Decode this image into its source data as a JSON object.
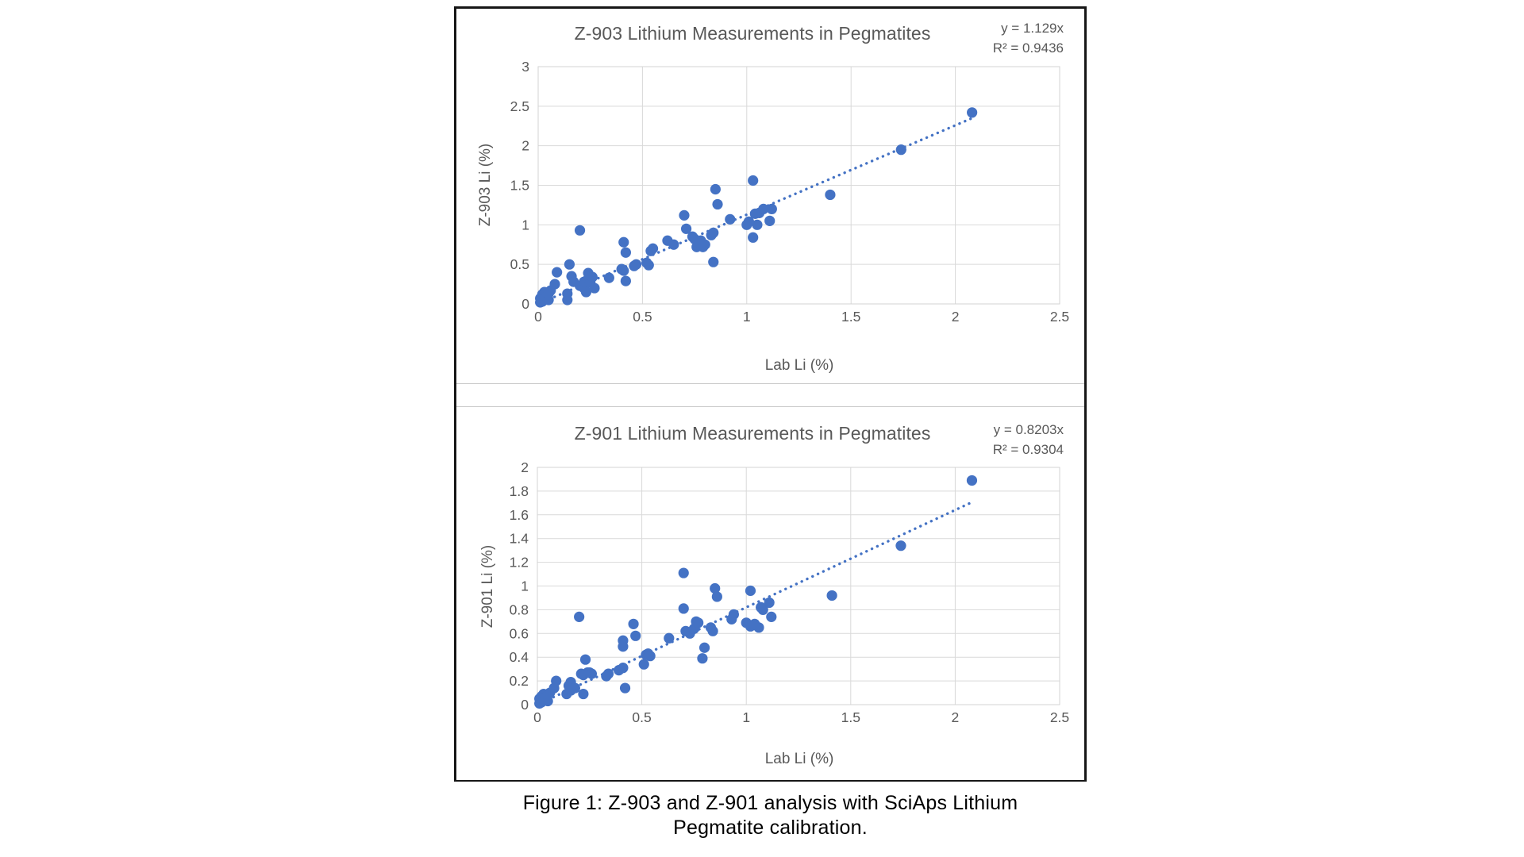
{
  "figure": {
    "caption": {
      "line1": "Figure 1: Z-903 and Z-901 analysis with SciAps Lithium",
      "line2": "Pegmatite calibration."
    }
  },
  "colors": {
    "marker": "#4472C4",
    "trendline": "#4472C4",
    "grid": "#D9D9D9",
    "plot_border": "#D3D3D3",
    "axis_text": "#595959",
    "figure_border": "#161616"
  },
  "chart_data": [
    {
      "type": "scatter",
      "title": "Z-903 Lithium Measurements in Pegmatites",
      "equation": "y = 1.129x",
      "r_squared": "R² = 0.9436",
      "xlabel": "Lab Li (%)",
      "ylabel": "Z-903 Li (%)",
      "xlim": [
        0,
        2.5
      ],
      "ylim": [
        0,
        3
      ],
      "xticks": [
        0,
        0.5,
        1,
        1.5,
        2,
        2.5
      ],
      "yticks": [
        0,
        0.5,
        1,
        1.5,
        2,
        2.5,
        3
      ],
      "grid": true,
      "legend": "none",
      "trendline": {
        "style": "dotted",
        "slope": 1.129,
        "x_start": 0,
        "x_end": 2.09
      },
      "points": [
        [
          0.01,
          0.02
        ],
        [
          0.01,
          0.07
        ],
        [
          0.02,
          0.03
        ],
        [
          0.02,
          0.12
        ],
        [
          0.03,
          0.05
        ],
        [
          0.03,
          0.15
        ],
        [
          0.04,
          0.09
        ],
        [
          0.05,
          0.05
        ],
        [
          0.05,
          0.13
        ],
        [
          0.06,
          0.17
        ],
        [
          0.08,
          0.25
        ],
        [
          0.09,
          0.4
        ],
        [
          0.14,
          0.05
        ],
        [
          0.14,
          0.13
        ],
        [
          0.15,
          0.5
        ],
        [
          0.16,
          0.35
        ],
        [
          0.17,
          0.28
        ],
        [
          0.2,
          0.93
        ],
        [
          0.2,
          0.23
        ],
        [
          0.22,
          0.2
        ],
        [
          0.22,
          0.28
        ],
        [
          0.23,
          0.15
        ],
        [
          0.24,
          0.32
        ],
        [
          0.24,
          0.39
        ],
        [
          0.25,
          0.27
        ],
        [
          0.26,
          0.34
        ],
        [
          0.27,
          0.2
        ],
        [
          0.34,
          0.33
        ],
        [
          0.4,
          0.44
        ],
        [
          0.41,
          0.42
        ],
        [
          0.41,
          0.78
        ],
        [
          0.42,
          0.65
        ],
        [
          0.42,
          0.29
        ],
        [
          0.46,
          0.48
        ],
        [
          0.47,
          0.5
        ],
        [
          0.52,
          0.52
        ],
        [
          0.53,
          0.49
        ],
        [
          0.54,
          0.67
        ],
        [
          0.55,
          0.7
        ],
        [
          0.62,
          0.8
        ],
        [
          0.65,
          0.75
        ],
        [
          0.7,
          1.12
        ],
        [
          0.71,
          0.95
        ],
        [
          0.74,
          0.85
        ],
        [
          0.75,
          0.82
        ],
        [
          0.76,
          0.72
        ],
        [
          0.77,
          0.77
        ],
        [
          0.78,
          0.8
        ],
        [
          0.79,
          0.72
        ],
        [
          0.8,
          0.75
        ],
        [
          0.83,
          0.87
        ],
        [
          0.84,
          0.9
        ],
        [
          0.84,
          0.53
        ],
        [
          0.85,
          1.45
        ],
        [
          0.86,
          1.26
        ],
        [
          0.92,
          1.07
        ],
        [
          1.0,
          1.0
        ],
        [
          1.01,
          1.04
        ],
        [
          1.03,
          1.56
        ],
        [
          1.03,
          0.84
        ],
        [
          1.04,
          1.14
        ],
        [
          1.05,
          1.0
        ],
        [
          1.06,
          1.15
        ],
        [
          1.08,
          1.2
        ],
        [
          1.11,
          1.05
        ],
        [
          1.12,
          1.2
        ],
        [
          1.4,
          1.38
        ],
        [
          1.74,
          1.95
        ],
        [
          2.08,
          2.42
        ]
      ]
    },
    {
      "type": "scatter",
      "title": "Z-901 Lithium Measurements in Pegmatites",
      "equation": "y = 0.8203x",
      "r_squared": "R² = 0.9304",
      "xlabel": "Lab Li (%)",
      "ylabel": "Z-901 Li (%)",
      "xlim": [
        0,
        2.5
      ],
      "ylim": [
        0,
        2
      ],
      "xticks": [
        0,
        0.5,
        1,
        1.5,
        2,
        2.5
      ],
      "yticks": [
        0,
        0.2,
        0.4,
        0.6,
        0.8,
        1,
        1.2,
        1.4,
        1.6,
        1.8,
        2
      ],
      "grid": true,
      "legend": "none",
      "trendline": {
        "style": "dotted",
        "slope": 0.8203,
        "x_start": 0,
        "x_end": 2.07
      },
      "points": [
        [
          0.01,
          0.01
        ],
        [
          0.01,
          0.05
        ],
        [
          0.02,
          0.02
        ],
        [
          0.02,
          0.07
        ],
        [
          0.03,
          0.04
        ],
        [
          0.03,
          0.09
        ],
        [
          0.04,
          0.06
        ],
        [
          0.05,
          0.03
        ],
        [
          0.05,
          0.08
        ],
        [
          0.06,
          0.1
        ],
        [
          0.08,
          0.14
        ],
        [
          0.09,
          0.2
        ],
        [
          0.14,
          0.09
        ],
        [
          0.15,
          0.16
        ],
        [
          0.16,
          0.19
        ],
        [
          0.16,
          0.12
        ],
        [
          0.18,
          0.14
        ],
        [
          0.2,
          0.74
        ],
        [
          0.21,
          0.26
        ],
        [
          0.22,
          0.09
        ],
        [
          0.22,
          0.25
        ],
        [
          0.23,
          0.38
        ],
        [
          0.24,
          0.27
        ],
        [
          0.25,
          0.27
        ],
        [
          0.26,
          0.26
        ],
        [
          0.33,
          0.24
        ],
        [
          0.34,
          0.26
        ],
        [
          0.39,
          0.29
        ],
        [
          0.41,
          0.31
        ],
        [
          0.41,
          0.54
        ],
        [
          0.41,
          0.49
        ],
        [
          0.42,
          0.14
        ],
        [
          0.46,
          0.68
        ],
        [
          0.47,
          0.58
        ],
        [
          0.51,
          0.34
        ],
        [
          0.52,
          0.42
        ],
        [
          0.53,
          0.43
        ],
        [
          0.54,
          0.41
        ],
        [
          0.63,
          0.56
        ],
        [
          0.7,
          1.11
        ],
        [
          0.7,
          0.81
        ],
        [
          0.71,
          0.62
        ],
        [
          0.73,
          0.6
        ],
        [
          0.75,
          0.64
        ],
        [
          0.76,
          0.7
        ],
        [
          0.77,
          0.69
        ],
        [
          0.79,
          0.39
        ],
        [
          0.8,
          0.48
        ],
        [
          0.83,
          0.65
        ],
        [
          0.84,
          0.62
        ],
        [
          0.85,
          0.98
        ],
        [
          0.86,
          0.91
        ],
        [
          0.93,
          0.72
        ],
        [
          0.94,
          0.76
        ],
        [
          1.0,
          0.69
        ],
        [
          1.02,
          0.96
        ],
        [
          1.02,
          0.66
        ],
        [
          1.04,
          0.68
        ],
        [
          1.06,
          0.65
        ],
        [
          1.07,
          0.82
        ],
        [
          1.08,
          0.8
        ],
        [
          1.11,
          0.86
        ],
        [
          1.12,
          0.74
        ],
        [
          1.41,
          0.92
        ],
        [
          1.74,
          1.34
        ],
        [
          2.08,
          1.89
        ]
      ]
    }
  ]
}
